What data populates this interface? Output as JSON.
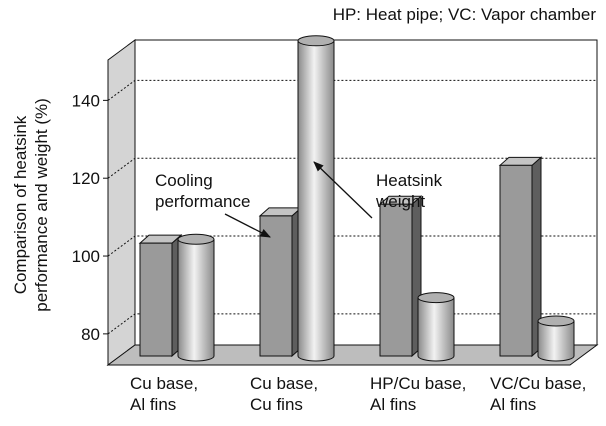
{
  "chart_data": {
    "type": "bar3d",
    "subtitle": "HP: Heat pipe;  VC: Vapor chamber",
    "y_label": "Comparison of heatsink\nperformance and weight (%)",
    "categories": [
      "Cu base,\nAl fins",
      "Cu base,\nCu fins",
      "HP/Cu base,\nAl fins",
      "VC/Cu base,\nAl fins"
    ],
    "series": [
      {
        "name": "Cooling\nperformance",
        "shape": "box",
        "color": "#9a9a9a",
        "values": [
          101,
          108,
          111,
          121
        ]
      },
      {
        "name": "Heatsink\nweight",
        "shape": "cylinder",
        "color": "#c8c8c8",
        "values": [
          102,
          153,
          87,
          81
        ]
      }
    ],
    "ylim": [
      72,
      155
    ],
    "yticks": [
      80,
      100,
      120,
      140
    ],
    "grid": true
  }
}
